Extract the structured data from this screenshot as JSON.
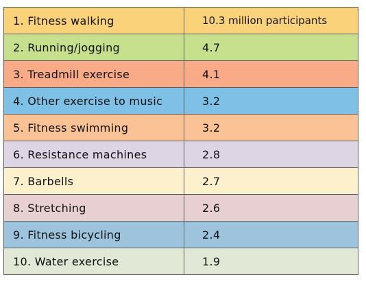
{
  "chart_data": {
    "type": "table",
    "rows": [
      {
        "label": "1. Fitness walking",
        "value": "10.3 million participants",
        "color": "#fad27a"
      },
      {
        "label": "2. Running/jogging",
        "value": "4.7",
        "color": "#c7e08e"
      },
      {
        "label": "3. Treadmill exercise",
        "value": "4.1",
        "color": "#f9ab87"
      },
      {
        "label": "4. Other exercise to music",
        "value": "3.2",
        "color": "#7fc1e6"
      },
      {
        "label": "5. Fitness swimming",
        "value": "3.2",
        "color": "#fbc395"
      },
      {
        "label": "6. Resistance machines",
        "value": "2.8",
        "color": "#ddd4e4"
      },
      {
        "label": "7. Barbells",
        "value": "2.7",
        "color": "#fdf0cc"
      },
      {
        "label": "8. Stretching",
        "value": "2.6",
        "color": "#e8cfd2"
      },
      {
        "label": "9. Fitness bicycling",
        "value": "2.4",
        "color": "#9ec3dd"
      },
      {
        "label": "10. Water exercise",
        "value": "1.9",
        "color": "#e1e8d5"
      }
    ]
  }
}
